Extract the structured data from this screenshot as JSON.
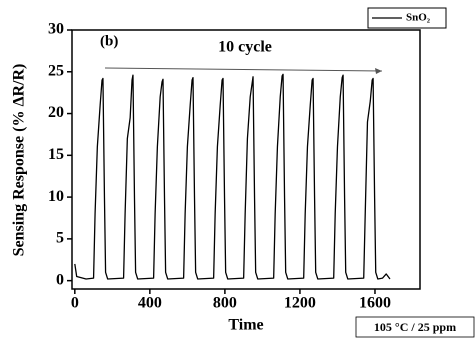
{
  "chart_data": {
    "type": "line",
    "title": "(b)",
    "annotation": "10 cycle",
    "condition": "105 °C / 25 ppm",
    "x_label": "Time",
    "y_label": "Sensing Response (% ΔR/R)",
    "xlim": [
      -15,
      1840
    ],
    "ylim": [
      -1,
      30
    ],
    "xticks": [
      0,
      400,
      800,
      1200,
      1600
    ],
    "yticks": [
      0,
      5,
      10,
      15,
      20,
      25,
      30
    ],
    "legend": "top-right",
    "series": [
      {
        "name": "SnO₂",
        "color": "#000000",
        "x": [
          0,
          10,
          60,
          100,
          108,
          120,
          135,
          145,
          150,
          158,
          164,
          175,
          260,
          268,
          280,
          295,
          305,
          310,
          318,
          324,
          335,
          420,
          428,
          440,
          455,
          465,
          470,
          478,
          484,
          495,
          580,
          588,
          600,
          615,
          625,
          630,
          638,
          644,
          655,
          740,
          748,
          760,
          775,
          785,
          790,
          798,
          804,
          815,
          900,
          908,
          920,
          935,
          945,
          950,
          958,
          964,
          975,
          1060,
          1068,
          1080,
          1095,
          1105,
          1110,
          1118,
          1124,
          1135,
          1220,
          1228,
          1240,
          1255,
          1265,
          1270,
          1278,
          1284,
          1295,
          1380,
          1388,
          1400,
          1415,
          1425,
          1430,
          1438,
          1444,
          1455,
          1540,
          1548,
          1560,
          1575,
          1585,
          1590,
          1598,
          1604,
          1615,
          1640,
          1660,
          1680
        ],
        "values": [
          2,
          0.5,
          0.2,
          0.3,
          8,
          16,
          21,
          24,
          24.2,
          10,
          1,
          0.2,
          0.3,
          8,
          17,
          19.5,
          24,
          24.6,
          10,
          1,
          0.2,
          0.3,
          8,
          16,
          22,
          23.8,
          24.1,
          10,
          1,
          0.2,
          0.3,
          8,
          16,
          21,
          24,
          24.3,
          10,
          1,
          0.2,
          0.3,
          8,
          16,
          21,
          24,
          24.2,
          10,
          1,
          0.2,
          0.3,
          8,
          17,
          22,
          23.6,
          24.4,
          10,
          1,
          0.2,
          0.3,
          8,
          16,
          22,
          24.5,
          24.7,
          10,
          1,
          0.2,
          0.3,
          8,
          16,
          21,
          24,
          24.2,
          10,
          1,
          0.2,
          0.3,
          8,
          16,
          22,
          24.3,
          24.6,
          10,
          1,
          0.2,
          0.3,
          8,
          19,
          21.5,
          24,
          24.2,
          10,
          1,
          0.2,
          0.3,
          0.8,
          0.2
        ]
      }
    ]
  }
}
